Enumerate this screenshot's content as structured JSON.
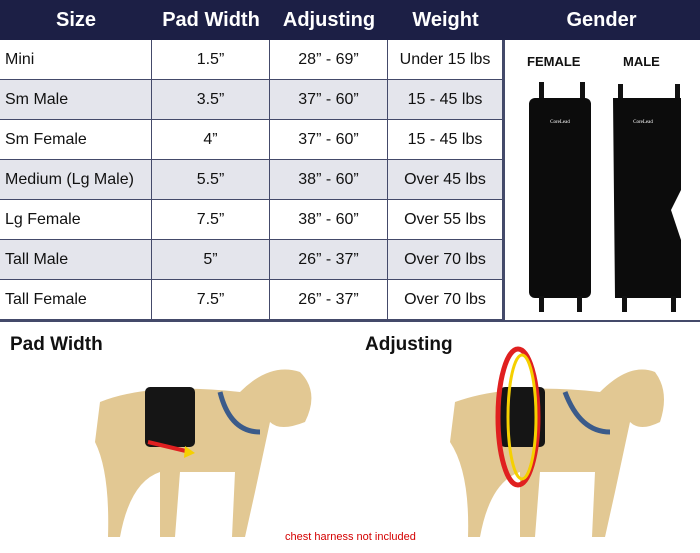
{
  "table": {
    "headers": [
      "Size",
      "Pad Width",
      "Adjusting",
      "Weight",
      "Gender"
    ],
    "rows": [
      [
        "Mini",
        "1.5”",
        "28” - 69”",
        "Under 15 lbs"
      ],
      [
        "Sm Male",
        "3.5”",
        "37” - 60”",
        "15 - 45 lbs"
      ],
      [
        "Sm Female",
        "4”",
        "37” - 60”",
        "15 - 45 lbs"
      ],
      [
        "Medium (Lg Male)",
        "5.5”",
        "38” - 60”",
        "Over 45 lbs"
      ],
      [
        "Lg Female",
        "7.5”",
        "38” - 60”",
        "Over 55 lbs"
      ],
      [
        "Tall Male",
        "5”",
        "26” - 37”",
        "Over 70 lbs"
      ],
      [
        "Tall Female",
        "7.5”",
        "26” - 37”",
        "Over 70 lbs"
      ]
    ]
  },
  "gender": {
    "female": "FEMALE",
    "male": "MALE",
    "brand_logo": "CoreLead"
  },
  "bottom": {
    "pad_width_title": "Pad Width",
    "adjusting_title": "Adjusting",
    "note": "chest harness not included"
  },
  "colors": {
    "header": "#1c1f45",
    "alt_row": "#e4e5ec",
    "note": "#d40000",
    "arrow_red": "#e02020",
    "arrow_yellow": "#f5d000"
  }
}
